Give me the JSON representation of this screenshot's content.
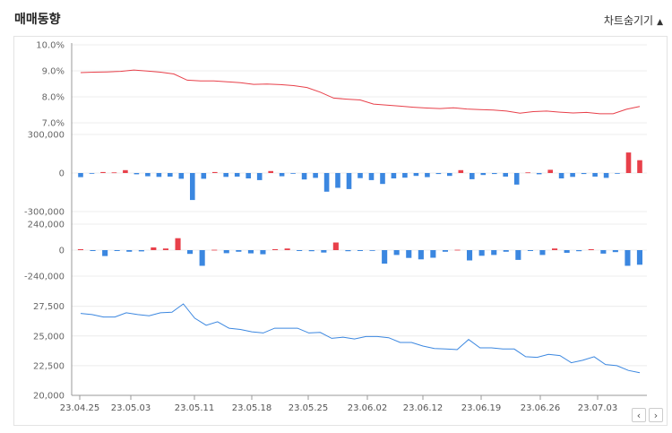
{
  "header": {
    "title": "매매동향",
    "toggle_label": "차트숨기기",
    "toggle_icon": "triangle-up-icon"
  },
  "nav": {
    "prev": "‹",
    "next": "›"
  },
  "colors": {
    "red": "#e8404a",
    "blue": "#3b87e0",
    "grid": "#ececec",
    "axis": "#999999"
  },
  "chart_data": [
    {
      "type": "line",
      "name": "ratio",
      "y_ticks": [
        "7.0%",
        "8.0%",
        "9.0%",
        "10.0%"
      ],
      "ylim": [
        7.0,
        10.0
      ],
      "values": [
        8.93,
        8.95,
        8.96,
        8.98,
        9.03,
        8.99,
        8.95,
        8.88,
        8.64,
        8.61,
        8.61,
        8.58,
        8.54,
        8.48,
        8.49,
        8.47,
        8.43,
        8.36,
        8.18,
        7.95,
        7.91,
        7.88,
        7.72,
        7.68,
        7.64,
        7.6,
        7.57,
        7.55,
        7.58,
        7.53,
        7.51,
        7.49,
        7.45,
        7.37,
        7.43,
        7.45,
        7.41,
        7.38,
        7.4,
        7.35,
        7.35,
        7.52,
        7.63
      ]
    },
    {
      "type": "bar",
      "name": "series-a",
      "y_ticks": [
        "-300,000",
        "0",
        "300,000"
      ],
      "ylim": [
        -300000,
        300000
      ],
      "values": [
        -32000,
        -5000,
        8000,
        5000,
        22000,
        -10000,
        -25000,
        -30000,
        -28000,
        -45000,
        -210000,
        -45000,
        8000,
        -30000,
        -28000,
        -42000,
        -55000,
        15000,
        -25000,
        -5000,
        -50000,
        -38000,
        -145000,
        -115000,
        -125000,
        -40000,
        -55000,
        -85000,
        -42000,
        -36000,
        -22000,
        -32000,
        -8000,
        -22000,
        22000,
        -48000,
        -15000,
        -8000,
        -28000,
        -90000,
        5000,
        -10000,
        25000,
        -42000,
        -30000,
        -8000,
        -28000,
        -38000,
        -5000,
        160000,
        100000
      ]
    },
    {
      "type": "bar",
      "name": "series-b",
      "y_ticks": [
        "-240,000",
        "0",
        "240,000"
      ],
      "ylim": [
        -240000,
        240000
      ],
      "values": [
        8000,
        -8000,
        -55000,
        -8000,
        -15000,
        -12000,
        25000,
        15000,
        110000,
        -35000,
        -145000,
        3000,
        -28000,
        -15000,
        -30000,
        -38000,
        8000,
        15000,
        -8000,
        -10000,
        -22000,
        70000,
        -10000,
        -8000,
        -5000,
        -125000,
        -45000,
        -72000,
        -85000,
        -70000,
        -15000,
        3000,
        -95000,
        -52000,
        -45000,
        -15000,
        -90000,
        -8000,
        -45000,
        15000,
        -25000,
        -10000,
        8000,
        -32000,
        -18000,
        -145000,
        -135000
      ]
    },
    {
      "type": "line",
      "name": "price",
      "y_ticks": [
        "20,000",
        "22,500",
        "25,000",
        "27,500"
      ],
      "ylim": [
        20000,
        28000
      ],
      "values": [
        26900,
        26800,
        26600,
        26600,
        26950,
        26800,
        26700,
        26950,
        27000,
        27700,
        26500,
        25900,
        26200,
        25650,
        25550,
        25350,
        25250,
        25650,
        25650,
        25650,
        25250,
        25300,
        24800,
        24900,
        24750,
        24950,
        24950,
        24850,
        24450,
        24450,
        24150,
        23950,
        23900,
        23850,
        24700,
        24000,
        24000,
        23900,
        23900,
        23250,
        23200,
        23450,
        23350,
        22750,
        22950,
        23250,
        22600,
        22500,
        22100,
        21900
      ]
    }
  ],
  "x_ticks": [
    "23.04.25",
    "23.05.03",
    "23.05.11",
    "23.05.18",
    "23.05.25",
    "23.06.02",
    "23.06.12",
    "23.06.19",
    "23.06.26",
    "23.07.03"
  ]
}
